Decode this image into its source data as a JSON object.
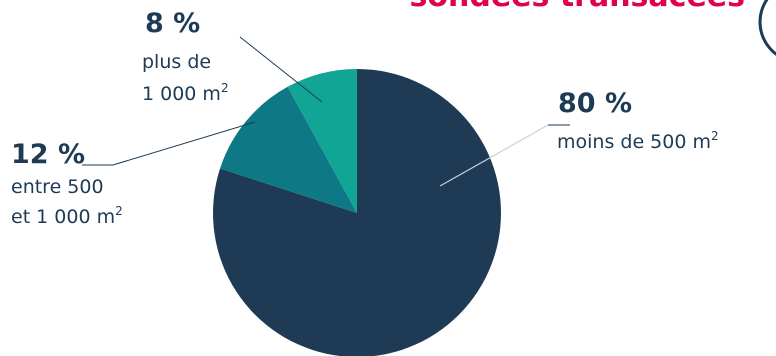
{
  "header": {
    "title_fragment": "sondées transacées"
  },
  "chart_data": {
    "type": "pie",
    "slices": [
      {
        "percent_label": "80 %",
        "value": 80,
        "label": "moins de 500 m",
        "color": "#1e3a55"
      },
      {
        "percent_label": "12 %",
        "value": 12,
        "label_line1": "entre 500",
        "label_line2": "et 1 000 m",
        "color": "#0e7887"
      },
      {
        "percent_label": "8 %",
        "value": 8,
        "label_line1": "plus de",
        "label_line2": "1 000 m",
        "color": "#11a596"
      }
    ],
    "unit_superscript": "2"
  },
  "colors": {
    "title": "#e0004d",
    "text": "#1e3a55",
    "badge_border": "#1e3a55"
  }
}
